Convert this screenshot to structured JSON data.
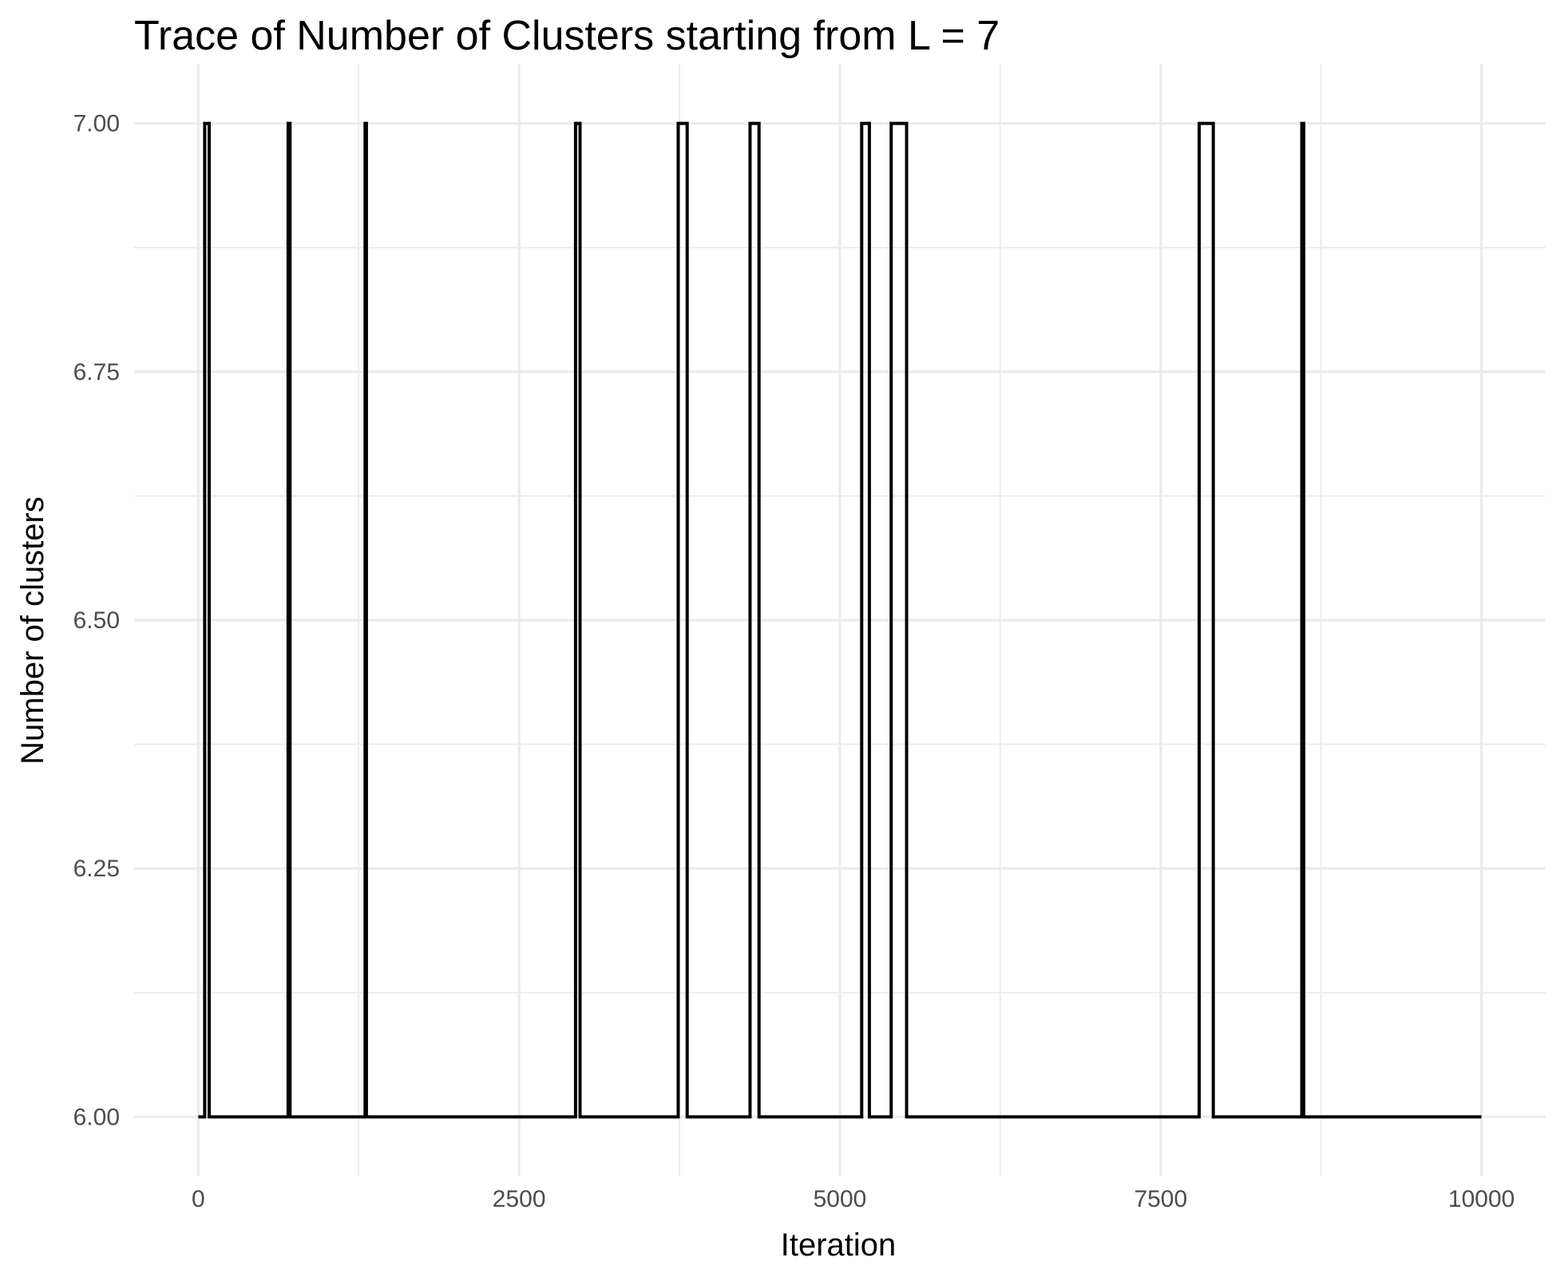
{
  "chart_data": {
    "type": "line",
    "title": "Trace of Number of Clusters starting from L = 7",
    "xlabel": "Iteration",
    "ylabel": "Number of clusters",
    "xlim": [
      -500,
      10500
    ],
    "ylim": [
      5.94,
      7.06
    ],
    "x_ticks": [
      0,
      2500,
      5000,
      7500,
      10000
    ],
    "x_tick_labels": [
      "0",
      "2500",
      "5000",
      "7500",
      "10000"
    ],
    "y_ticks": [
      6.0,
      6.25,
      6.5,
      6.75,
      7.0
    ],
    "y_tick_labels": [
      "6.00",
      "6.25",
      "6.50",
      "6.75",
      "7.00"
    ],
    "x_minor_ticks": [
      1250,
      3750,
      6250,
      8750
    ],
    "y_minor_ticks": [
      6.125,
      6.375,
      6.625,
      6.875
    ],
    "grid": true,
    "line_color": "#000000",
    "step": "post",
    "series": [
      {
        "x": [
          0,
          50,
          85,
          700,
          715,
          1300,
          1310,
          2940,
          2975,
          3740,
          3810,
          4300,
          4370,
          5170,
          5230,
          5400,
          5520,
          7800,
          7910,
          8600,
          8615,
          10000
        ],
        "values": [
          6,
          7,
          6,
          7,
          6,
          7,
          6,
          7,
          6,
          7,
          6,
          7,
          6,
          7,
          6,
          7,
          6,
          7,
          6,
          7,
          6,
          6
        ]
      }
    ]
  }
}
